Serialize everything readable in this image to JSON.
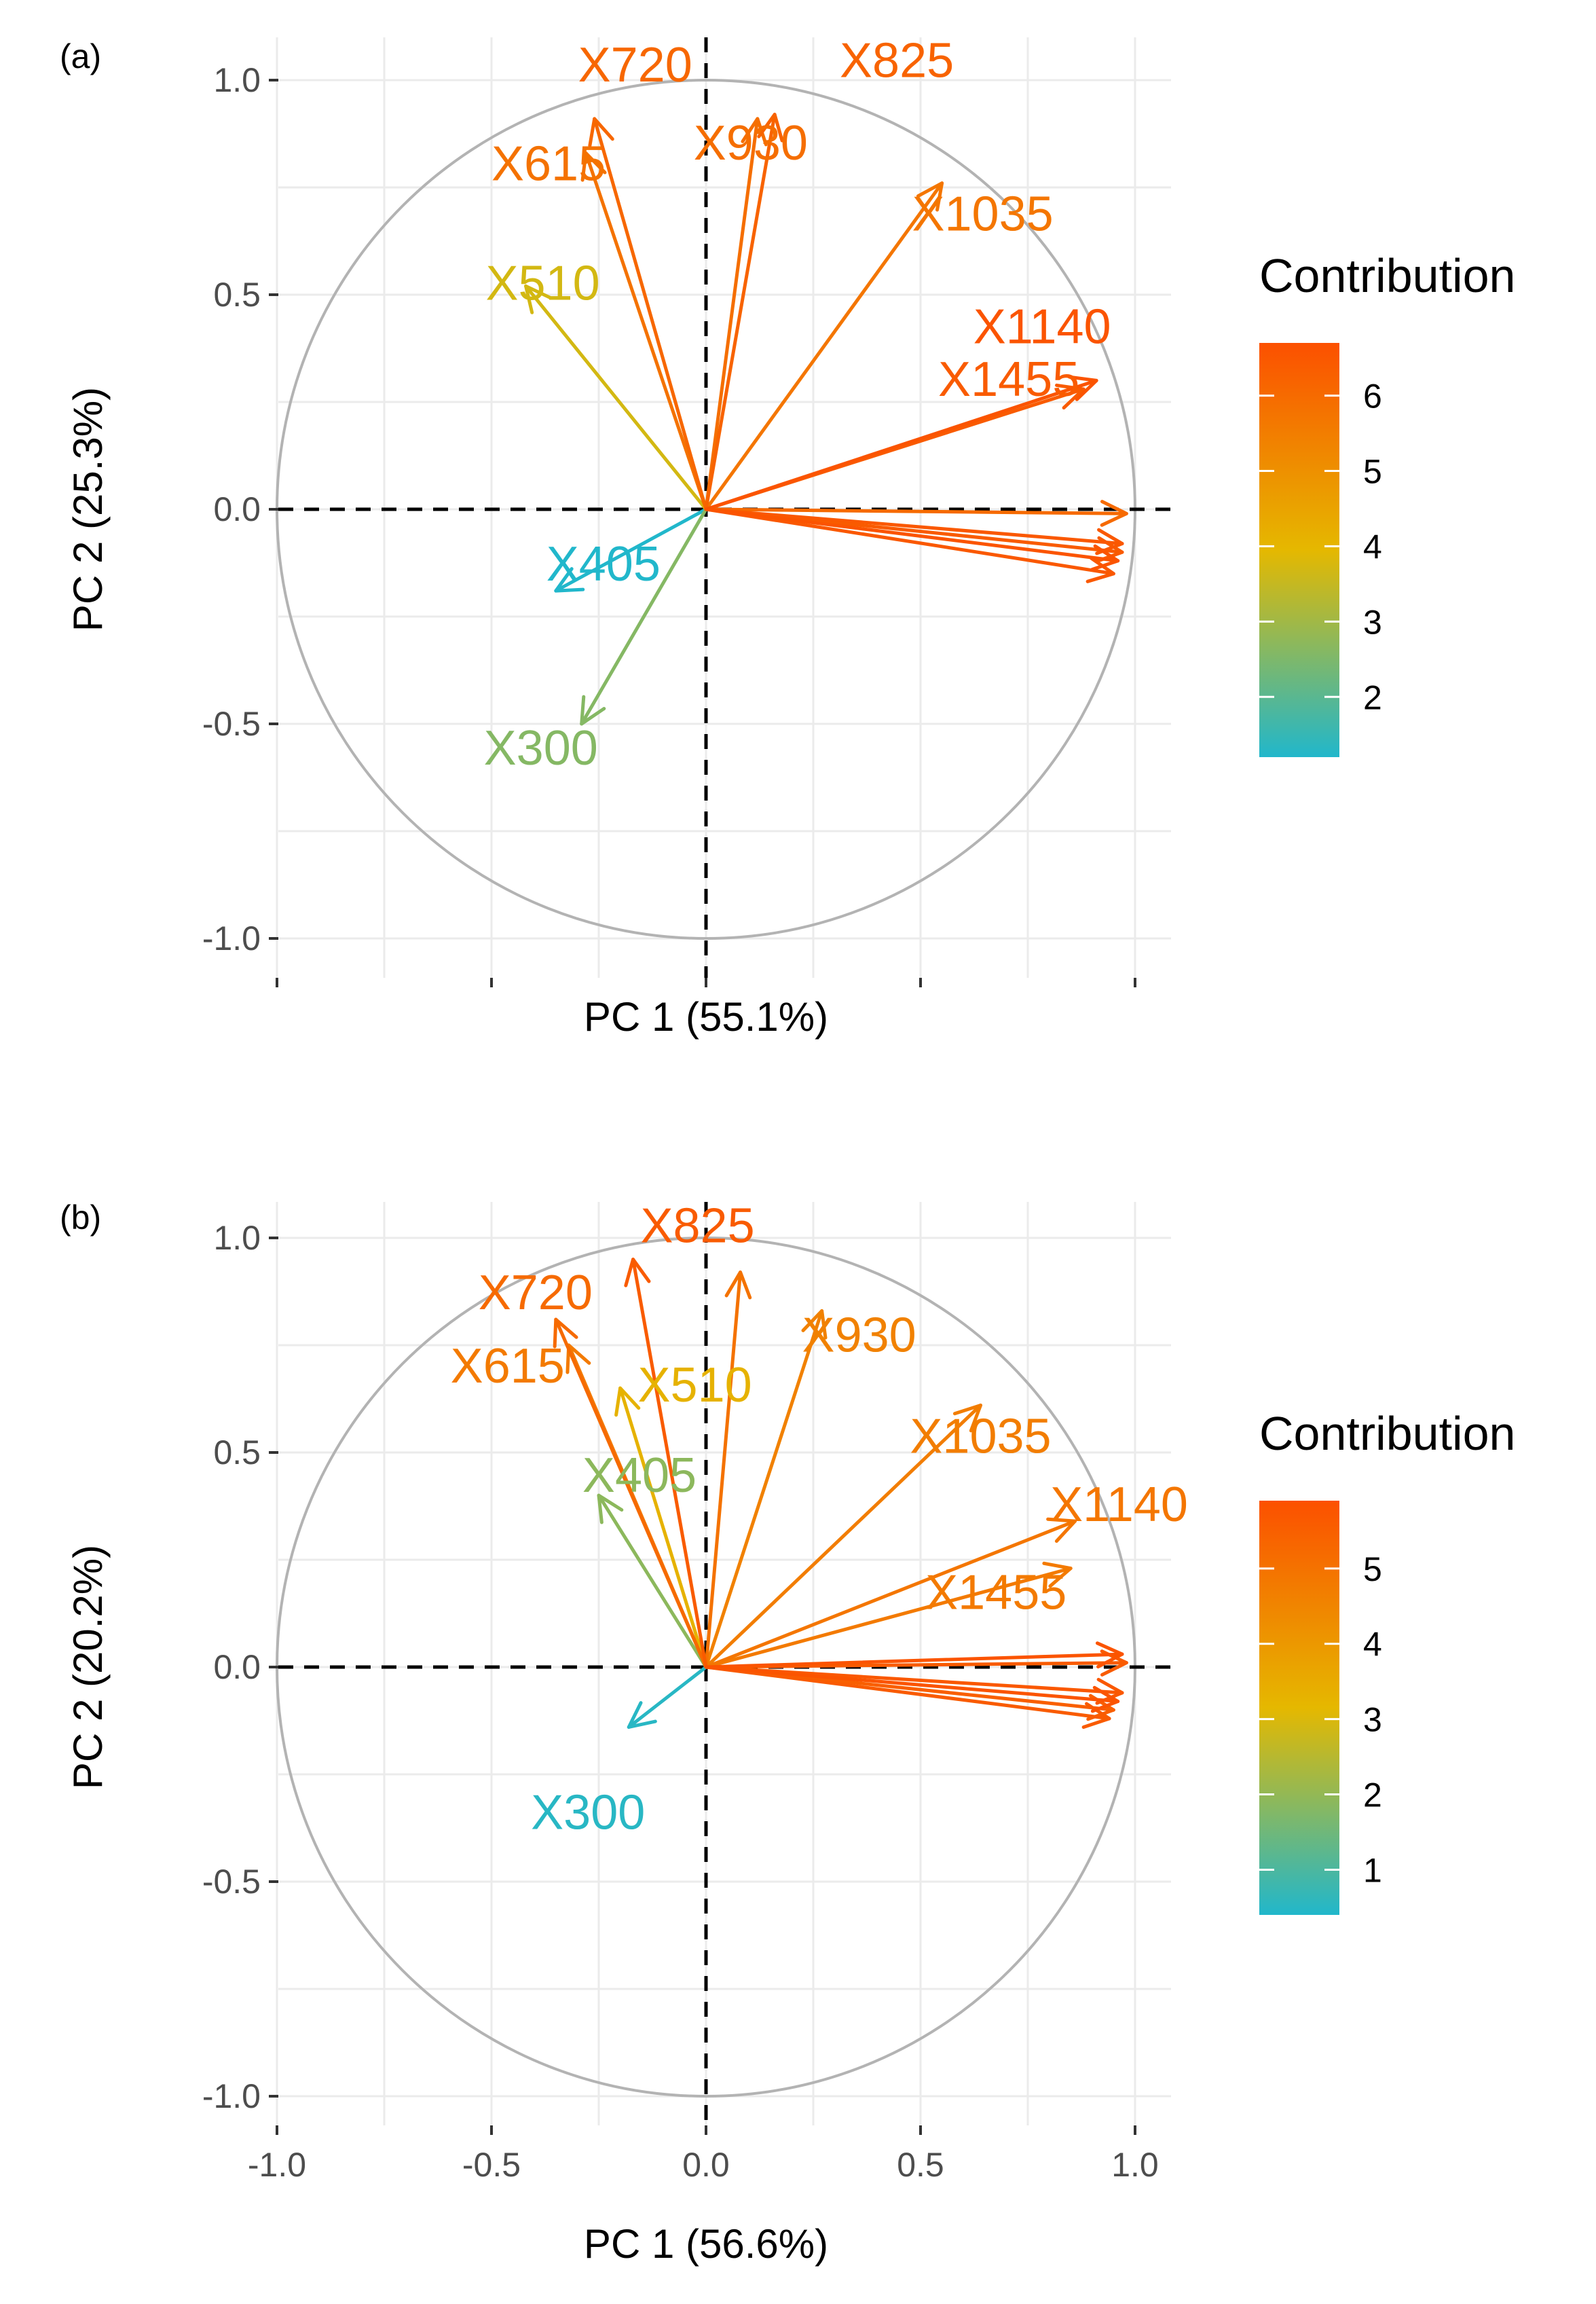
{
  "chart_data": [
    {
      "type": "scatter",
      "subtype": "pca-variable-correlation-circle",
      "panel_label": "(a)",
      "xlabel": "PC 1 (55.1%)",
      "ylabel": "PC 2 (25.3%)",
      "xlim": [
        -1.0,
        1.0
      ],
      "ylim": [
        -1.0,
        1.0
      ],
      "x_ticks": [
        -1.0,
        -0.5,
        0.0,
        0.5,
        1.0
      ],
      "x_tick_labels": [],
      "y_ticks": [
        -1.0,
        -0.5,
        0.0,
        0.5,
        1.0
      ],
      "y_tick_labels": [
        "-1.0",
        "-0.5",
        "0.0",
        "0.5",
        "1.0"
      ],
      "grid": true,
      "unit_circle": true,
      "legend": {
        "title": "Contribution",
        "range": [
          1.2,
          6.7
        ],
        "ticks": [
          2,
          3,
          4,
          5,
          6
        ],
        "tick_labels": [
          "2",
          "3",
          "4",
          "5",
          "6"
        ],
        "placement": "right"
      },
      "variables": [
        {
          "name": "X720",
          "label": "X720",
          "x": -0.26,
          "y": 0.91,
          "contribution": 6.1
        },
        {
          "name": "X615",
          "label": "X615",
          "x": -0.28,
          "y": 0.83,
          "contribution": 5.8
        },
        {
          "name": "X825",
          "label": "X825",
          "x": 0.16,
          "y": 0.92,
          "contribution": 6.2
        },
        {
          "name": "X930",
          "label": "X930",
          "x": 0.12,
          "y": 0.91,
          "contribution": 5.9
        },
        {
          "name": "X1035",
          "label": "X1035",
          "x": 0.55,
          "y": 0.76,
          "contribution": 5.7
        },
        {
          "name": "X510",
          "label": "X510",
          "x": -0.42,
          "y": 0.52,
          "contribution": 3.7
        },
        {
          "name": "X1140",
          "label": "X1140",
          "x": 0.91,
          "y": 0.3,
          "contribution": 6.6
        },
        {
          "name": "X1455",
          "label": "X1455",
          "x": 0.88,
          "y": 0.28,
          "contribution": 6.4
        },
        {
          "name": "var_a1",
          "label": "",
          "x": 0.98,
          "y": -0.01,
          "contribution": 6.0
        },
        {
          "name": "var_a2",
          "label": "",
          "x": 0.97,
          "y": -0.08,
          "contribution": 6.5
        },
        {
          "name": "var_a3",
          "label": "",
          "x": 0.97,
          "y": -0.1,
          "contribution": 6.4
        },
        {
          "name": "var_a4",
          "label": "",
          "x": 0.96,
          "y": -0.12,
          "contribution": 6.6
        },
        {
          "name": "var_a5",
          "label": "",
          "x": 0.95,
          "y": -0.15,
          "contribution": 6.5
        },
        {
          "name": "X405",
          "label": "X405",
          "x": -0.35,
          "y": -0.19,
          "contribution": 1.2
        },
        {
          "name": "X300",
          "label": "X300",
          "x": -0.29,
          "y": -0.5,
          "contribution": 2.6
        }
      ]
    },
    {
      "type": "scatter",
      "subtype": "pca-variable-correlation-circle",
      "panel_label": "(b)",
      "xlabel": "PC 1 (56.6%)",
      "ylabel": "PC 2 (20.2%)",
      "xlim": [
        -1.0,
        1.0
      ],
      "ylim": [
        -1.0,
        1.0
      ],
      "x_ticks": [
        -1.0,
        -0.5,
        0.0,
        0.5,
        1.0
      ],
      "x_tick_labels": [
        "-1.0",
        "-0.5",
        "0.0",
        "0.5",
        "1.0"
      ],
      "y_ticks": [
        -1.0,
        -0.5,
        0.0,
        0.5,
        1.0
      ],
      "y_tick_labels": [
        "-1.0",
        "-0.5",
        "0.0",
        "0.5",
        "1.0"
      ],
      "grid": true,
      "unit_circle": true,
      "legend": {
        "title": "Contribution",
        "range": [
          0.4,
          5.9
        ],
        "ticks": [
          1,
          2,
          3,
          4,
          5
        ],
        "tick_labels": [
          "1",
          "2",
          "3",
          "4",
          "5"
        ],
        "placement": "right"
      },
      "variables": [
        {
          "name": "X825",
          "label": "X825",
          "x": -0.17,
          "y": 0.95,
          "contribution": 5.6
        },
        {
          "name": "X720",
          "label": "X720",
          "x": -0.35,
          "y": 0.81,
          "contribution": 5.2
        },
        {
          "name": "X_arrow_825b",
          "label": "",
          "x": 0.08,
          "y": 0.92,
          "contribution": 5.0
        },
        {
          "name": "X930",
          "label": "X930",
          "x": 0.27,
          "y": 0.83,
          "contribution": 4.6
        },
        {
          "name": "X615",
          "label": "X615",
          "x": -0.32,
          "y": 0.75,
          "contribution": 4.8
        },
        {
          "name": "X510",
          "label": "X510",
          "x": -0.2,
          "y": 0.65,
          "contribution": 3.3
        },
        {
          "name": "X405",
          "label": "X405",
          "x": -0.25,
          "y": 0.4,
          "contribution": 1.9
        },
        {
          "name": "X1035",
          "label": "X1035",
          "x": 0.64,
          "y": 0.61,
          "contribution": 4.7
        },
        {
          "name": "X1140",
          "label": "X1140",
          "x": 0.86,
          "y": 0.34,
          "contribution": 4.9
        },
        {
          "name": "X1455",
          "label": "X1455",
          "x": 0.85,
          "y": 0.23,
          "contribution": 4.8
        },
        {
          "name": "var_b1",
          "label": "",
          "x": 0.97,
          "y": 0.03,
          "contribution": 5.8
        },
        {
          "name": "var_b2",
          "label": "",
          "x": 0.98,
          "y": 0.01,
          "contribution": 5.6
        },
        {
          "name": "var_b3",
          "label": "",
          "x": 0.97,
          "y": -0.06,
          "contribution": 5.7
        },
        {
          "name": "var_b4",
          "label": "",
          "x": 0.96,
          "y": -0.08,
          "contribution": 5.8
        },
        {
          "name": "var_b5",
          "label": "",
          "x": 0.95,
          "y": -0.1,
          "contribution": 5.5
        },
        {
          "name": "var_b6",
          "label": "",
          "x": 0.94,
          "y": -0.12,
          "contribution": 5.6
        },
        {
          "name": "X300",
          "label": "X300",
          "x": -0.18,
          "y": -0.14,
          "contribution": 0.5
        }
      ]
    }
  ],
  "colors": {
    "gradient_low": "#21B7CB",
    "gradient_mid": "#E5B800",
    "gradient_high": "#FC5000",
    "grid": "#EBEBEB",
    "circle": "#B3B3B3",
    "axis_tick": "#333333",
    "tick_label": "#4D4D4D",
    "zero_line": "#000000"
  }
}
